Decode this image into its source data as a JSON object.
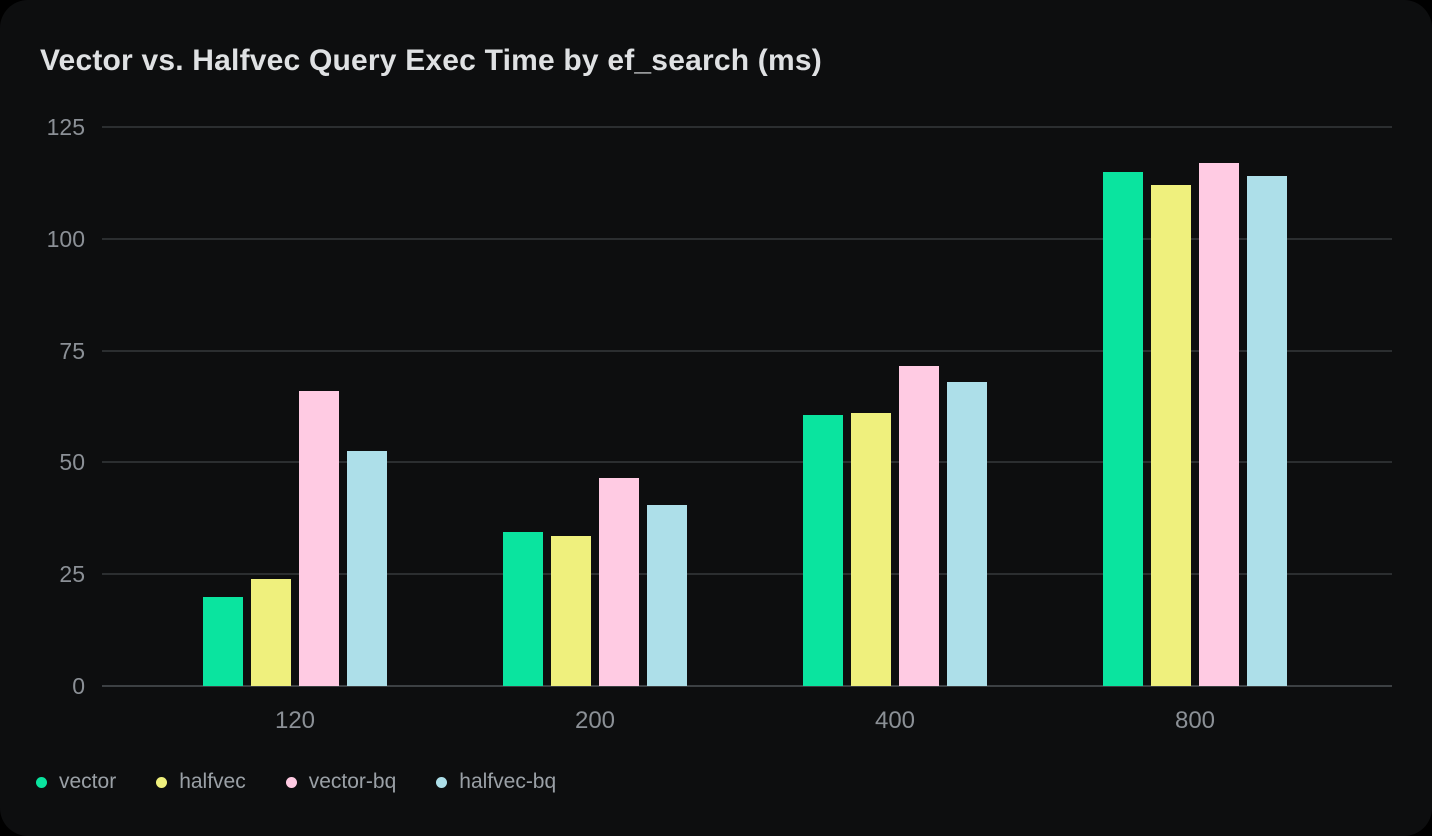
{
  "title": "Vector vs. Halfvec Query Exec Time by ef_search (ms)",
  "colors": {
    "page_background": "#000000",
    "card_background": "#0d0e0f",
    "title_text": "#dfe1e3",
    "tick_text": "#8b9096",
    "legend_text": "#9aa0a6",
    "gridline": "#2b2e30",
    "axis_line": "#3c4043"
  },
  "chart_data": {
    "type": "bar",
    "title": "Vector vs. Halfvec Query Exec Time by ef_search (ms)",
    "categories": [
      "120",
      "200",
      "400",
      "800"
    ],
    "series": [
      {
        "name": "vector",
        "color": "#0ae49f",
        "values": [
          20,
          34.5,
          60.5,
          115
        ]
      },
      {
        "name": "halfvec",
        "color": "#eff07d",
        "values": [
          24,
          33.5,
          61,
          112
        ]
      },
      {
        "name": "vector-bq",
        "color": "#ffcbe3",
        "values": [
          66,
          46.5,
          71.5,
          117
        ]
      },
      {
        "name": "halfvec-bq",
        "color": "#addfe9",
        "values": [
          52.5,
          40.5,
          68,
          114
        ]
      }
    ],
    "xlabel": "",
    "ylabel": "",
    "ylim": [
      0,
      125
    ],
    "yticks": [
      0,
      25,
      50,
      75,
      100,
      125
    ],
    "grid": true,
    "legend_position": "bottom-left"
  }
}
